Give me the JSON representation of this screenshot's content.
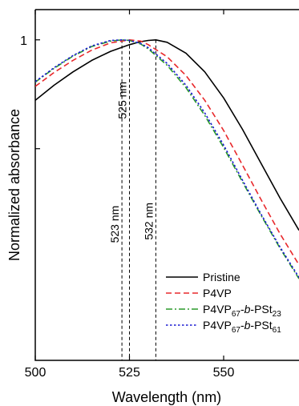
{
  "chart_data": {
    "type": "line",
    "xlabel": "Wavelength (nm)",
    "ylabel": "Normalized absorbance",
    "xlim": [
      500,
      570
    ],
    "ylim": [
      0.47,
      1.05
    ],
    "x_ticks": [
      500,
      525,
      550
    ],
    "y_ticks": [
      {
        "value": 1,
        "label": "1"
      },
      {
        "value": 0.82,
        "label": ""
      }
    ],
    "legend_position": "bottom-right",
    "series": [
      {
        "name": "Pristine",
        "style": "solid",
        "color": "#000000",
        "x": [
          500,
          505,
          510,
          515,
          520,
          525,
          528,
          530,
          532,
          535,
          540,
          545,
          550,
          555,
          560,
          565,
          570
        ],
        "y": [
          0.9,
          0.925,
          0.947,
          0.966,
          0.981,
          0.992,
          0.997,
          0.999,
          1.0,
          0.996,
          0.978,
          0.947,
          0.904,
          0.852,
          0.795,
          0.738,
          0.685
        ]
      },
      {
        "name": "P4VP",
        "style": "dashed",
        "color": "#e8282b",
        "x": [
          500,
          505,
          510,
          515,
          520,
          525,
          528,
          530,
          535,
          540,
          545,
          550,
          555,
          560,
          565,
          570
        ],
        "y": [
          0.923,
          0.946,
          0.966,
          0.983,
          0.995,
          1.0,
          0.998,
          0.992,
          0.972,
          0.941,
          0.9,
          0.85,
          0.793,
          0.735,
          0.679,
          0.628
        ]
      },
      {
        "name": "P4VP<sub>67</sub>-<i>b</i>-PSt<sub>23</sub>",
        "style": "dashdot",
        "color": "#2a9a2a",
        "x": [
          500,
          505,
          510,
          515,
          520,
          523,
          525,
          528,
          530,
          535,
          540,
          545,
          550,
          555,
          560,
          565,
          570
        ],
        "y": [
          0.93,
          0.953,
          0.973,
          0.989,
          0.998,
          1.0,
          0.999,
          0.993,
          0.985,
          0.958,
          0.921,
          0.875,
          0.822,
          0.765,
          0.709,
          0.655,
          0.605
        ]
      },
      {
        "name": "P4VP<sub>67</sub>-<i>b</i>-PSt<sub>61</sub>",
        "style": "dotted",
        "color": "#1a1ad2",
        "x": [
          500,
          505,
          510,
          515,
          520,
          523,
          525,
          528,
          530,
          535,
          540,
          545,
          550,
          555,
          560,
          565,
          570
        ],
        "y": [
          0.931,
          0.954,
          0.974,
          0.99,
          0.999,
          1.0,
          0.999,
          0.994,
          0.987,
          0.961,
          0.925,
          0.879,
          0.826,
          0.768,
          0.711,
          0.657,
          0.607
        ]
      }
    ],
    "annotations": [
      {
        "x": 523,
        "label": "523 nm",
        "y_text": 0.695
      },
      {
        "x": 525,
        "label": "525 nm",
        "y_text": 0.9
      },
      {
        "x": 532,
        "label": "532 nm",
        "y_text": 0.7
      }
    ]
  }
}
